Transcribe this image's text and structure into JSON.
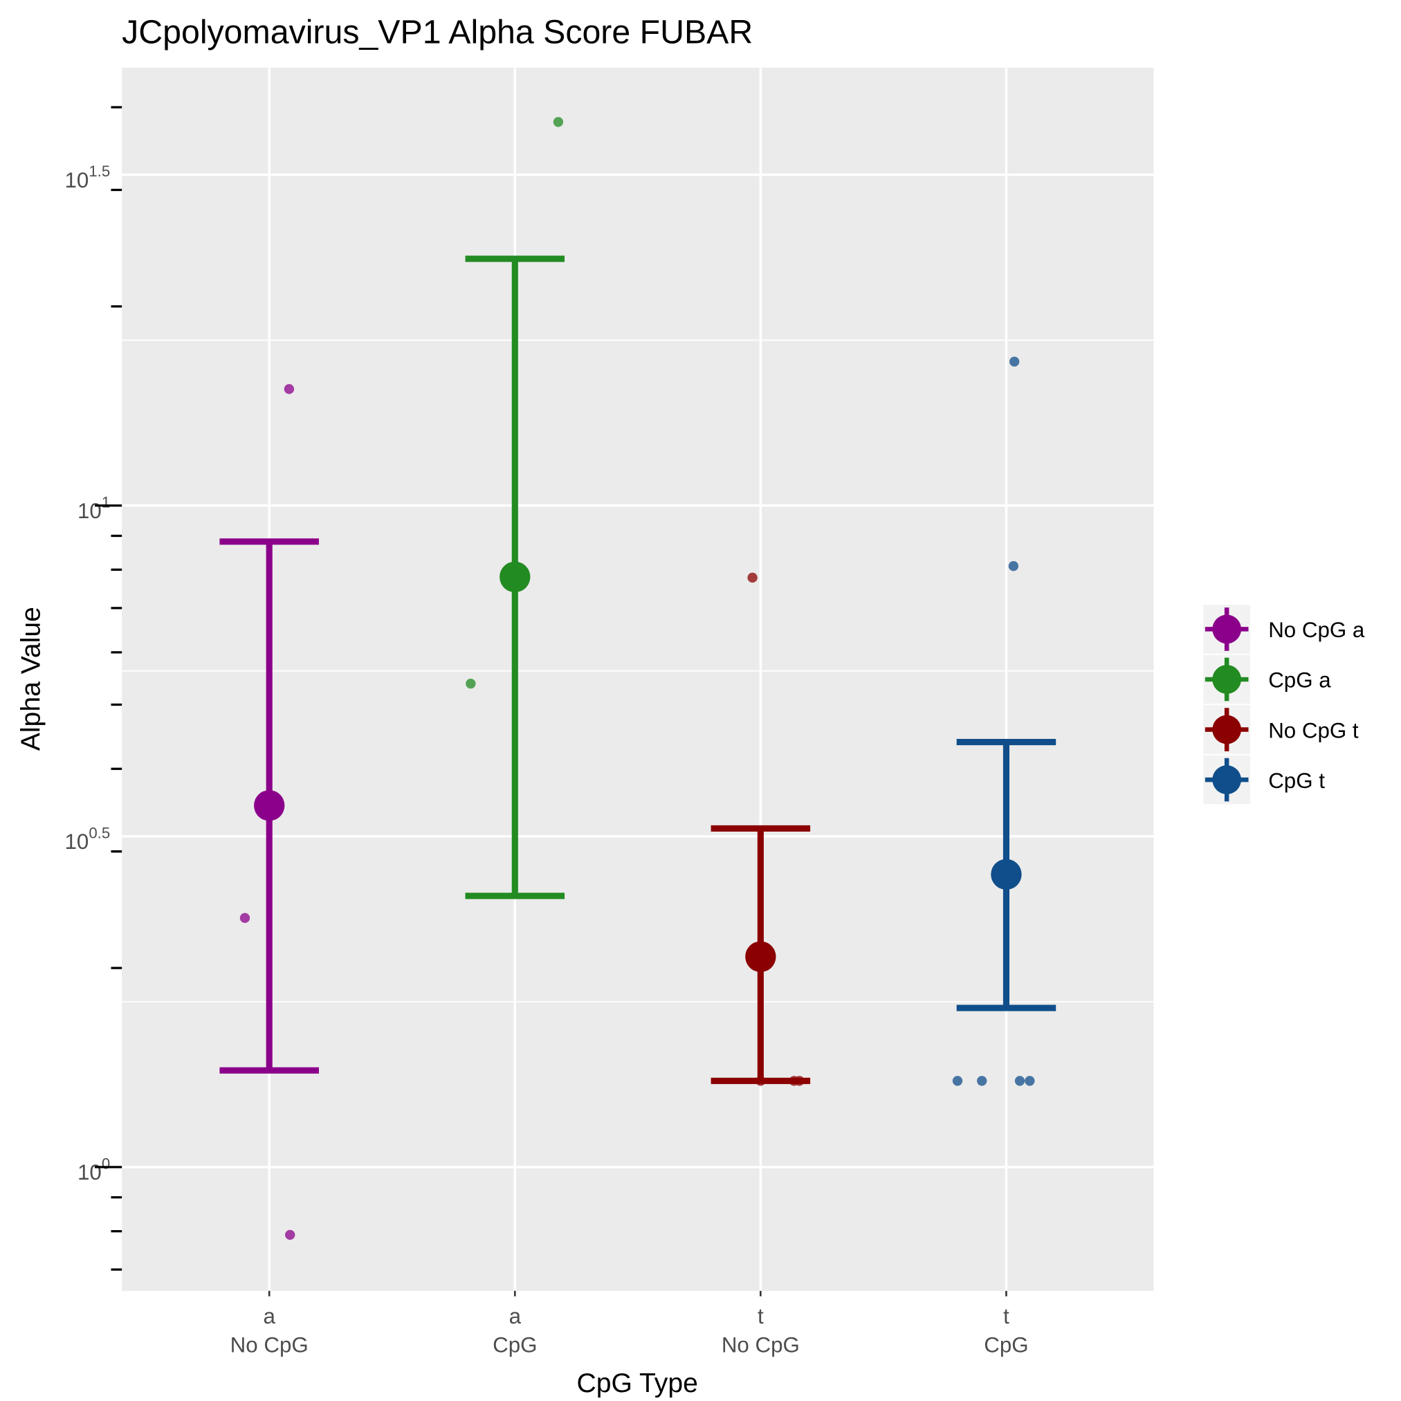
{
  "chart_data": {
    "type": "errorbar-point",
    "title": "JCpolyomavirus_VP1 Alpha Score FUBAR",
    "x_label": "CpG Type",
    "y_label": "Alpha Value",
    "log_scale_y": true,
    "grid": true,
    "categories": [
      [
        "a",
        "No CpG"
      ],
      [
        "a",
        "CpG"
      ],
      [
        "t",
        "No CpG"
      ],
      [
        "t",
        "CpG"
      ]
    ],
    "ylim": [
      0.65,
      45.9
    ],
    "yticks": [
      {
        "value": 1,
        "label": "10^0"
      },
      {
        "value": 3.1623,
        "label": "10^0.5"
      },
      {
        "value": 10,
        "label": "10^1"
      },
      {
        "value": 31.623,
        "label": "10^1.5"
      }
    ],
    "logticks": [
      0.7,
      0.8,
      0.9,
      1,
      2,
      3,
      4,
      5,
      6,
      7,
      8,
      9,
      10,
      20,
      30,
      40
    ],
    "series": [
      {
        "name": "No CpG a",
        "color": "#8B008B",
        "mean": 3.52,
        "lower": 1.4,
        "upper": 8.82,
        "points": [
          15.0,
          2.38,
          0.79
        ]
      },
      {
        "name": "CpG a",
        "color": "#228B22",
        "mean": 7.8,
        "lower": 2.57,
        "upper": 23.6,
        "points": [
          38.0,
          5.38
        ]
      },
      {
        "name": "No CpG t",
        "color": "#8B0000",
        "mean": 2.08,
        "lower": 1.35,
        "upper": 3.25,
        "points": [
          7.78,
          1.35,
          1.35,
          1.35
        ]
      },
      {
        "name": "CpG t",
        "color": "#104E8B",
        "mean": 2.77,
        "lower": 1.74,
        "upper": 4.39,
        "points": [
          16.5,
          8.1,
          1.35,
          1.35,
          1.35,
          1.35
        ]
      }
    ]
  }
}
